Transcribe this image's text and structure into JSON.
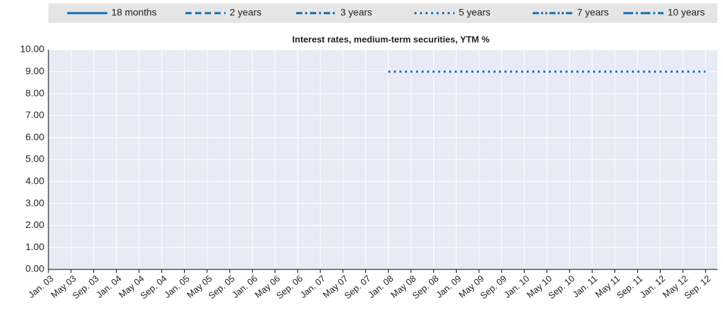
{
  "chart_data": {
    "type": "line",
    "title": "Interest rates, medium-term securities, YTM %",
    "categories": [
      "Jan. 03",
      "May 03",
      "Sep. 03",
      "Jan. 04",
      "May 04",
      "Sep. 04",
      "Jan. 05",
      "May 05",
      "Sep. 05",
      "Jan. 06",
      "May 06",
      "Sep. 06",
      "Jan. 07",
      "May 07",
      "Sep. 07",
      "Jan. 08",
      "May 08",
      "Sep. 08",
      "Jan. 09",
      "May 09",
      "Sep. 09",
      "Jan. 10",
      "May 10",
      "Sep. 10",
      "Jan. 11",
      "May 11",
      "Sep. 11",
      "Jan. 12",
      "May 12",
      "Sep. 12"
    ],
    "series": [
      {
        "name": "18 months",
        "color": "#0b6db4",
        "dash": "",
        "values": [
          null,
          null,
          null,
          null,
          null,
          null,
          null,
          null,
          null,
          null,
          null,
          null,
          null,
          null,
          null,
          null,
          null,
          null,
          null,
          null,
          null,
          null,
          null,
          null,
          null,
          null,
          null,
          null,
          null,
          null
        ]
      },
      {
        "name": "2 years",
        "color": "#0b6db4",
        "dash": "9,5",
        "values": [
          null,
          null,
          null,
          null,
          null,
          null,
          null,
          null,
          null,
          null,
          null,
          null,
          null,
          null,
          null,
          null,
          null,
          null,
          null,
          null,
          null,
          null,
          null,
          null,
          null,
          null,
          null,
          null,
          null,
          null
        ]
      },
      {
        "name": "3 years",
        "color": "#0b6db4",
        "dash": "9,4,3,4",
        "values": [
          null,
          null,
          null,
          null,
          null,
          null,
          null,
          null,
          null,
          null,
          null,
          null,
          null,
          null,
          null,
          null,
          null,
          null,
          null,
          null,
          null,
          null,
          null,
          null,
          null,
          null,
          null,
          null,
          null,
          null
        ]
      },
      {
        "name": "5 years",
        "color": "#0b6db4",
        "dash": "3,5",
        "values": [
          null,
          null,
          null,
          null,
          null,
          null,
          null,
          null,
          null,
          null,
          null,
          null,
          null,
          null,
          null,
          9,
          9,
          9,
          9,
          9,
          9,
          9,
          9,
          9,
          9,
          9,
          9,
          9,
          9,
          9
        ]
      },
      {
        "name": "7 years",
        "color": "#0b6db4",
        "dash": "9,3,3,3,3,3",
        "values": [
          null,
          null,
          null,
          null,
          null,
          null,
          null,
          null,
          null,
          null,
          null,
          null,
          null,
          null,
          null,
          null,
          null,
          null,
          null,
          null,
          null,
          null,
          null,
          null,
          null,
          null,
          null,
          null,
          null,
          null
        ]
      },
      {
        "name": "10 years",
        "color": "#0b6db4",
        "dash": "14,4,3,4",
        "values": [
          null,
          null,
          null,
          null,
          null,
          null,
          null,
          null,
          null,
          null,
          null,
          null,
          null,
          null,
          null,
          null,
          null,
          null,
          null,
          null,
          null,
          null,
          null,
          null,
          null,
          null,
          null,
          null,
          null,
          null
        ]
      }
    ],
    "ylim": [
      0,
      10
    ],
    "yticks": [
      {
        "value": 0,
        "label": "0.00"
      },
      {
        "value": 1,
        "label": "1.00"
      },
      {
        "value": 2,
        "label": "2.00"
      },
      {
        "value": 3,
        "label": "3.00"
      },
      {
        "value": 4,
        "label": "4.00"
      },
      {
        "value": 5,
        "label": "5.00"
      },
      {
        "value": 6,
        "label": "6.00"
      },
      {
        "value": 7,
        "label": "7.00"
      },
      {
        "value": 8,
        "label": "8.00"
      },
      {
        "value": 9,
        "label": "9.00"
      },
      {
        "value": 10,
        "label": "10.00"
      }
    ],
    "grid": true
  }
}
